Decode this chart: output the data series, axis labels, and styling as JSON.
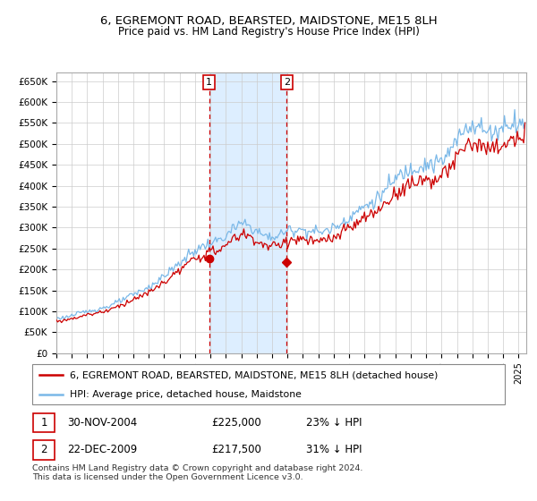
{
  "title": "6, EGREMONT ROAD, BEARSTED, MAIDSTONE, ME15 8LH",
  "subtitle": "Price paid vs. HM Land Registry's House Price Index (HPI)",
  "legend_line1": "6, EGREMONT ROAD, BEARSTED, MAIDSTONE, ME15 8LH (detached house)",
  "legend_line2": "HPI: Average price, detached house, Maidstone",
  "footnote": "Contains HM Land Registry data © Crown copyright and database right 2024.\nThis data is licensed under the Open Government Licence v3.0.",
  "sale1_date": "30-NOV-2004",
  "sale1_price": "£225,000",
  "sale1_hpi": "23% ↓ HPI",
  "sale2_date": "22-DEC-2009",
  "sale2_price": "£217,500",
  "sale2_hpi": "31% ↓ HPI",
  "hpi_color": "#7ab8e8",
  "sale_color": "#cc0000",
  "shade_color": "#ddeeff",
  "ylim": [
    0,
    670000
  ],
  "ytick_labels": [
    "£0",
    "£50K",
    "£100K",
    "£150K",
    "£200K",
    "£250K",
    "£300K",
    "£350K",
    "£400K",
    "£450K",
    "£500K",
    "£550K",
    "£600K",
    "£650K"
  ],
  "xmin": 1995.0,
  "xmax": 2025.5,
  "sale1_x": 2004.917,
  "sale1_y": 225000,
  "sale2_x": 2009.958,
  "sale2_y": 217500
}
